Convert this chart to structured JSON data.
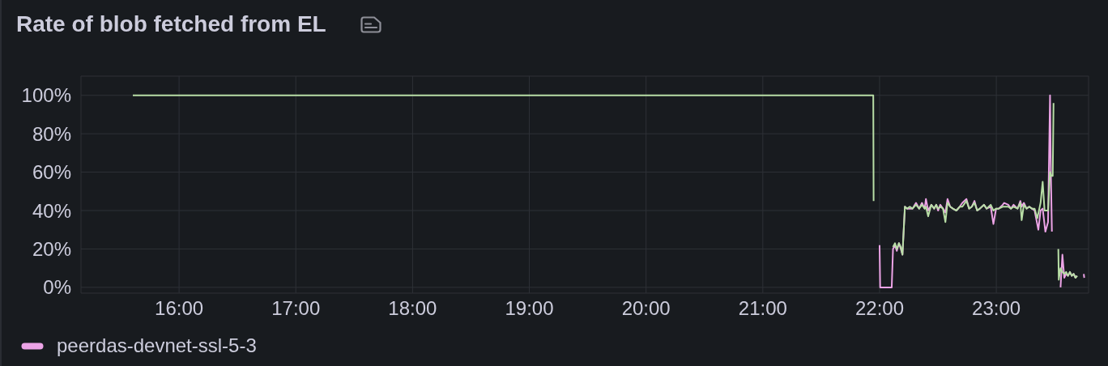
{
  "chart_data": {
    "type": "line",
    "title": "Rate of blob fetched from EL",
    "xlim": [
      15.16,
      23.79
    ],
    "xticks": [
      {
        "value": 16,
        "label": "16:00"
      },
      {
        "value": 17,
        "label": "17:00"
      },
      {
        "value": 18,
        "label": "18:00"
      },
      {
        "value": 19,
        "label": "19:00"
      },
      {
        "value": 20,
        "label": "20:00"
      },
      {
        "value": 21,
        "label": "21:00"
      },
      {
        "value": 22,
        "label": "22:00"
      },
      {
        "value": 23,
        "label": "23:00"
      }
    ],
    "ylim": [
      -3,
      110
    ],
    "yticks": [
      {
        "value": 0,
        "label": "0%"
      },
      {
        "value": 20,
        "label": "20%"
      },
      {
        "value": 40,
        "label": "40%"
      },
      {
        "value": 60,
        "label": "60%"
      },
      {
        "value": 80,
        "label": "80%"
      },
      {
        "value": 100,
        "label": "100%"
      }
    ],
    "grid": true,
    "legend": "bottom left",
    "series": [
      {
        "name": "peerdas-devnet-ssl-5-3",
        "color": "#eca3e6",
        "x": [
          22.0,
          22.005,
          22.104,
          22.115,
          22.132,
          22.148,
          22.166,
          22.182,
          22.196,
          22.217,
          22.236,
          22.259,
          22.282,
          22.312,
          22.339,
          22.363,
          22.386,
          22.397,
          22.416,
          22.443,
          22.467,
          22.485,
          22.501,
          22.52,
          22.543,
          22.564,
          22.582,
          22.605,
          22.628,
          22.658,
          22.686,
          22.709,
          22.744,
          22.767,
          22.79,
          22.813,
          22.836,
          22.859,
          22.894,
          22.917,
          22.952,
          22.975,
          22.998,
          23.021,
          23.055,
          23.067,
          23.102,
          23.125,
          23.148,
          23.182,
          23.206,
          23.217,
          23.236,
          23.259,
          23.282,
          23.305,
          23.328,
          23.36,
          23.379,
          23.397,
          23.42,
          23.443,
          23.46,
          23.467,
          23.476,
          23.51,
          23.55,
          23.566,
          23.582,
          23.598,
          23.614,
          23.63,
          23.646,
          23.662,
          23.678,
          23.69,
          23.72,
          23.749,
          23.753
        ],
        "values": [
          22,
          0,
          0,
          20,
          22,
          19,
          23,
          20,
          17,
          42,
          41,
          41,
          41,
          44,
          41,
          44,
          41,
          46,
          40,
          43,
          41,
          43,
          40,
          43,
          41,
          39,
          46,
          42,
          41,
          40,
          42,
          44,
          46,
          41,
          42,
          45,
          40,
          41,
          43,
          41,
          42,
          33,
          41,
          41,
          43,
          44,
          43,
          41,
          43,
          41,
          45,
          42,
          44,
          41,
          42,
          41,
          40,
          30,
          40,
          41,
          29,
          34,
          100,
          60,
          29,
          null,
          0,
          17,
          5,
          7,
          6,
          8,
          6,
          7,
          5,
          6,
          null,
          7,
          5
        ]
      },
      {
        "color": "#b8dea6",
        "x": [
          15.604,
          21.946,
          21.949,
          22.0,
          22.115,
          22.132,
          22.148,
          22.166,
          22.182,
          22.196,
          22.217,
          22.236,
          22.259,
          22.282,
          22.312,
          22.339,
          22.363,
          22.386,
          22.397,
          22.416,
          22.443,
          22.467,
          22.485,
          22.501,
          22.52,
          22.543,
          22.564,
          22.582,
          22.605,
          22.628,
          22.658,
          22.686,
          22.709,
          22.744,
          22.767,
          22.79,
          22.813,
          22.836,
          22.859,
          22.894,
          22.917,
          22.952,
          22.975,
          22.998,
          23.021,
          23.055,
          23.067,
          23.102,
          23.125,
          23.148,
          23.182,
          23.206,
          23.217,
          23.236,
          23.259,
          23.282,
          23.305,
          23.328,
          23.351,
          23.379,
          23.397,
          23.413,
          23.43,
          23.443,
          23.46,
          23.471,
          23.483,
          23.49,
          23.51,
          23.531,
          23.535,
          23.55,
          23.566,
          23.582,
          23.598,
          23.614,
          23.63,
          23.646,
          23.662,
          23.678,
          23.693
        ],
        "values": [
          100,
          100,
          45,
          null,
          21,
          23,
          20,
          23,
          21,
          17,
          42,
          41,
          42,
          41,
          43,
          41,
          43,
          41,
          42,
          37,
          43,
          41,
          43,
          41,
          42,
          41,
          34,
          44,
          42,
          41,
          40,
          42,
          42,
          45,
          41,
          42,
          44,
          40,
          41,
          43,
          41,
          43,
          40,
          41,
          41,
          42,
          42,
          42,
          41,
          42,
          41,
          44,
          35,
          43,
          41,
          42,
          41,
          41,
          36,
          44,
          55,
          40,
          40,
          40,
          60,
          58,
          58,
          96,
          null,
          20,
          4,
          10,
          8,
          7,
          8,
          6,
          8,
          6,
          7,
          5,
          6
        ]
      }
    ]
  }
}
